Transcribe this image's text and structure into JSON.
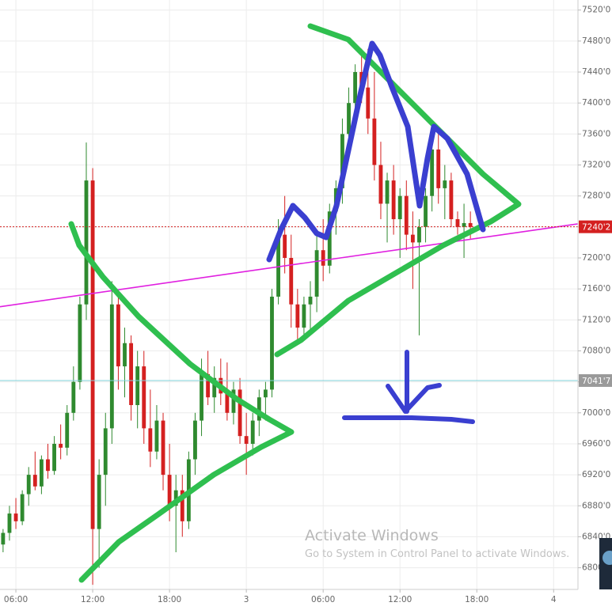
{
  "chart_data": {
    "type": "candlestick",
    "x": [
      5,
      5.5,
      6,
      6.5,
      7,
      7.5,
      8,
      8.5,
      9,
      9.5,
      10,
      10.5,
      11,
      11.5,
      12,
      12.5,
      13,
      13.5,
      14,
      14.5,
      15,
      15.5,
      16,
      16.5,
      17,
      17.5,
      18,
      18.5,
      19,
      19.5,
      20,
      20.5,
      21,
      21.5,
      22,
      22.5,
      23,
      23.5,
      24,
      24.5,
      25,
      25.5,
      26,
      26.5,
      27,
      27.5,
      28,
      28.5,
      29,
      29.5,
      30,
      30.5,
      31,
      31.5,
      32,
      32.5,
      33,
      33.5,
      34,
      34.5,
      35,
      35.5,
      36,
      36.5,
      37,
      37.5,
      38,
      38.5,
      39,
      39.5,
      40,
      40.5,
      41,
      41.5
    ],
    "open": [
      6830,
      6845,
      6870,
      6860,
      6895,
      6920,
      6905,
      6940,
      6925,
      6960,
      6955,
      7000,
      7040,
      7140,
      7300,
      6850,
      6920,
      6980,
      7140,
      7060,
      7090,
      7010,
      7060,
      6980,
      6950,
      6990,
      6920,
      6880,
      6900,
      6860,
      6940,
      6990,
      7050,
      7020,
      7045,
      7025,
      7000,
      7030,
      6970,
      6960,
      6990,
      7020,
      7030,
      7150,
      7230,
      7200,
      7140,
      7110,
      7140,
      7150,
      7210,
      7190,
      7260,
      7290,
      7360,
      7400,
      7440,
      7420,
      7380,
      7320,
      7270,
      7300,
      7250,
      7280,
      7230,
      7220,
      7240,
      7280,
      7340,
      7290,
      7300,
      7250,
      7240,
      7245
    ],
    "high": [
      6850,
      6880,
      6890,
      6900,
      6930,
      6950,
      6945,
      6960,
      6970,
      6985,
      7010,
      7060,
      7150,
      7349,
      7316,
      6940,
      7000,
      7170,
      7150,
      7110,
      7100,
      7080,
      7080,
      7030,
      7010,
      7000,
      6960,
      6920,
      6920,
      6950,
      7000,
      7070,
      7080,
      7060,
      7070,
      7065,
      7040,
      7045,
      7000,
      7000,
      7030,
      7040,
      7160,
      7250,
      7280,
      7230,
      7160,
      7150,
      7170,
      7230,
      7250,
      7270,
      7300,
      7380,
      7420,
      7450,
      7470,
      7470,
      7440,
      7350,
      7310,
      7320,
      7290,
      7300,
      7260,
      7250,
      7290,
      7350,
      7360,
      7320,
      7310,
      7260,
      7270,
      7260
    ],
    "low": [
      6820,
      6835,
      6850,
      6855,
      6880,
      6900,
      6895,
      6915,
      6920,
      6940,
      6945,
      6990,
      7030,
      7120,
      6778,
      6800,
      6880,
      6960,
      7030,
      7020,
      6990,
      6980,
      6960,
      6930,
      6940,
      6900,
      6860,
      6820,
      6840,
      6850,
      6920,
      6970,
      7010,
      7000,
      7010,
      6990,
      6985,
      6960,
      6920,
      6945,
      6970,
      6990,
      7020,
      7140,
      7180,
      7110,
      7090,
      7100,
      7100,
      7130,
      7170,
      7180,
      7230,
      7270,
      7330,
      7380,
      7400,
      7360,
      7300,
      7250,
      7220,
      7230,
      7200,
      7210,
      7160,
      7100,
      7220,
      7260,
      7270,
      7250,
      7240,
      7230,
      7200,
      7225
    ],
    "close": [
      6845,
      6870,
      6860,
      6895,
      6920,
      6905,
      6940,
      6925,
      6960,
      6955,
      7000,
      7040,
      7140,
      7300,
      6850,
      6920,
      6980,
      7140,
      7060,
      7090,
      7010,
      7060,
      6980,
      6950,
      6990,
      6920,
      6880,
      6900,
      6860,
      6940,
      6990,
      7050,
      7020,
      7045,
      7025,
      7000,
      7030,
      6970,
      6960,
      6990,
      7020,
      7030,
      7150,
      7230,
      7200,
      7140,
      7110,
      7140,
      7150,
      7210,
      7190,
      7260,
      7290,
      7360,
      7400,
      7440,
      7420,
      7380,
      7320,
      7270,
      7300,
      7250,
      7280,
      7230,
      7220,
      7240,
      7280,
      7340,
      7290,
      7300,
      7250,
      7240,
      7245,
      7240
    ],
    "up_color": "#2f8a2f",
    "down_color": "#d42020",
    "xlim": [
      4.76,
      49.9
    ],
    "xticks": [
      {
        "value": 6,
        "label": "06:00"
      },
      {
        "value": 12,
        "label": "12:00"
      },
      {
        "value": 18,
        "label": "18:00"
      },
      {
        "value": 24,
        "label": "3"
      },
      {
        "value": 30,
        "label": "06:00"
      },
      {
        "value": 36,
        "label": "12:00"
      },
      {
        "value": 42,
        "label": "18:00"
      },
      {
        "value": 48,
        "label": "4"
      }
    ],
    "ylim": [
      6772,
      7533
    ],
    "yticks": [
      {
        "value": 7520,
        "label": "7520'0"
      },
      {
        "value": 7480,
        "label": "7480'0"
      },
      {
        "value": 7440,
        "label": "7440'0"
      },
      {
        "value": 7400,
        "label": "7400'0"
      },
      {
        "value": 7360,
        "label": "7360'0"
      },
      {
        "value": 7320,
        "label": "7320'0"
      },
      {
        "value": 7280,
        "label": "7280'0"
      },
      {
        "value": 7240,
        "label": "7240'0"
      },
      {
        "value": 7200,
        "label": "7200'0"
      },
      {
        "value": 7160,
        "label": "7160'0"
      },
      {
        "value": 7120,
        "label": "7120'0"
      },
      {
        "value": 7080,
        "label": "7080'0"
      },
      {
        "value": 7040,
        "label": "7040'0"
      },
      {
        "value": 7000,
        "label": "7000'0"
      },
      {
        "value": 6960,
        "label": "6960'0"
      },
      {
        "value": 6920,
        "label": "6920'0"
      },
      {
        "value": 6880,
        "label": "6880'0"
      },
      {
        "value": 6840,
        "label": "6840'0"
      },
      {
        "value": 6800,
        "label": "6800'0"
      }
    ],
    "grid": true,
    "hlines": [
      {
        "value": 7240.2,
        "label": "7240'2",
        "color": "#d42020",
        "badge": "#d42020",
        "dotted": true
      },
      {
        "value": 7041.7,
        "label": "7041'7",
        "color": "#7fd0d8",
        "badge": "#9a9a9a",
        "dotted": false
      }
    ],
    "trendline": {
      "x": [
        4.76,
        49.9
      ],
      "y": [
        7137,
        7244
      ],
      "color": "#e020e0"
    }
  },
  "watermark": {
    "title": "Activate Windows",
    "text": "Go to System in Control Panel to activate Windows."
  }
}
